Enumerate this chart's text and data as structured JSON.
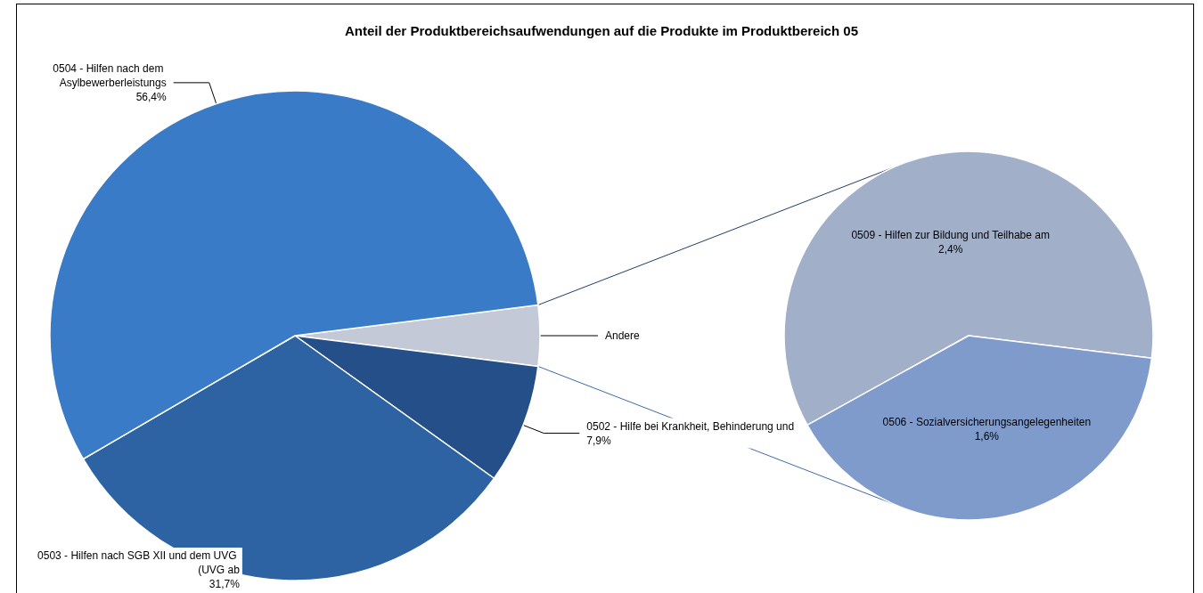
{
  "chart_data": [
    {
      "type": "pie",
      "title": "Anteil der Produktbereichsaufwendungen auf die Produkte im Produktbereich 05",
      "categories": [
        "Andere",
        "0502 - Hilfe bei Krankheit, Behinderung und",
        "0503 - Hilfen nach SGB XII und dem UVG (UVG ab",
        "0504 - Hilfen nach dem Asylbewerberleistungs"
      ],
      "values": [
        4.0,
        7.9,
        31.7,
        56.4
      ],
      "colors": [
        "#c3c9d6",
        "#244f88",
        "#2d62a3",
        "#3a7bc8"
      ],
      "value_labels": [
        null,
        "7,9%",
        "31,7%",
        "56,4%"
      ]
    },
    {
      "type": "pie",
      "categories": [
        "0509 - Hilfen zur Bildung und Teilhabe am",
        "0506 - Sozialversicherungsangelegenheiten"
      ],
      "values": [
        2.4,
        1.6
      ],
      "colors": [
        "#a2afc9",
        "#7f9bcb"
      ],
      "value_labels": [
        "2,4%",
        "1,6%"
      ]
    }
  ]
}
